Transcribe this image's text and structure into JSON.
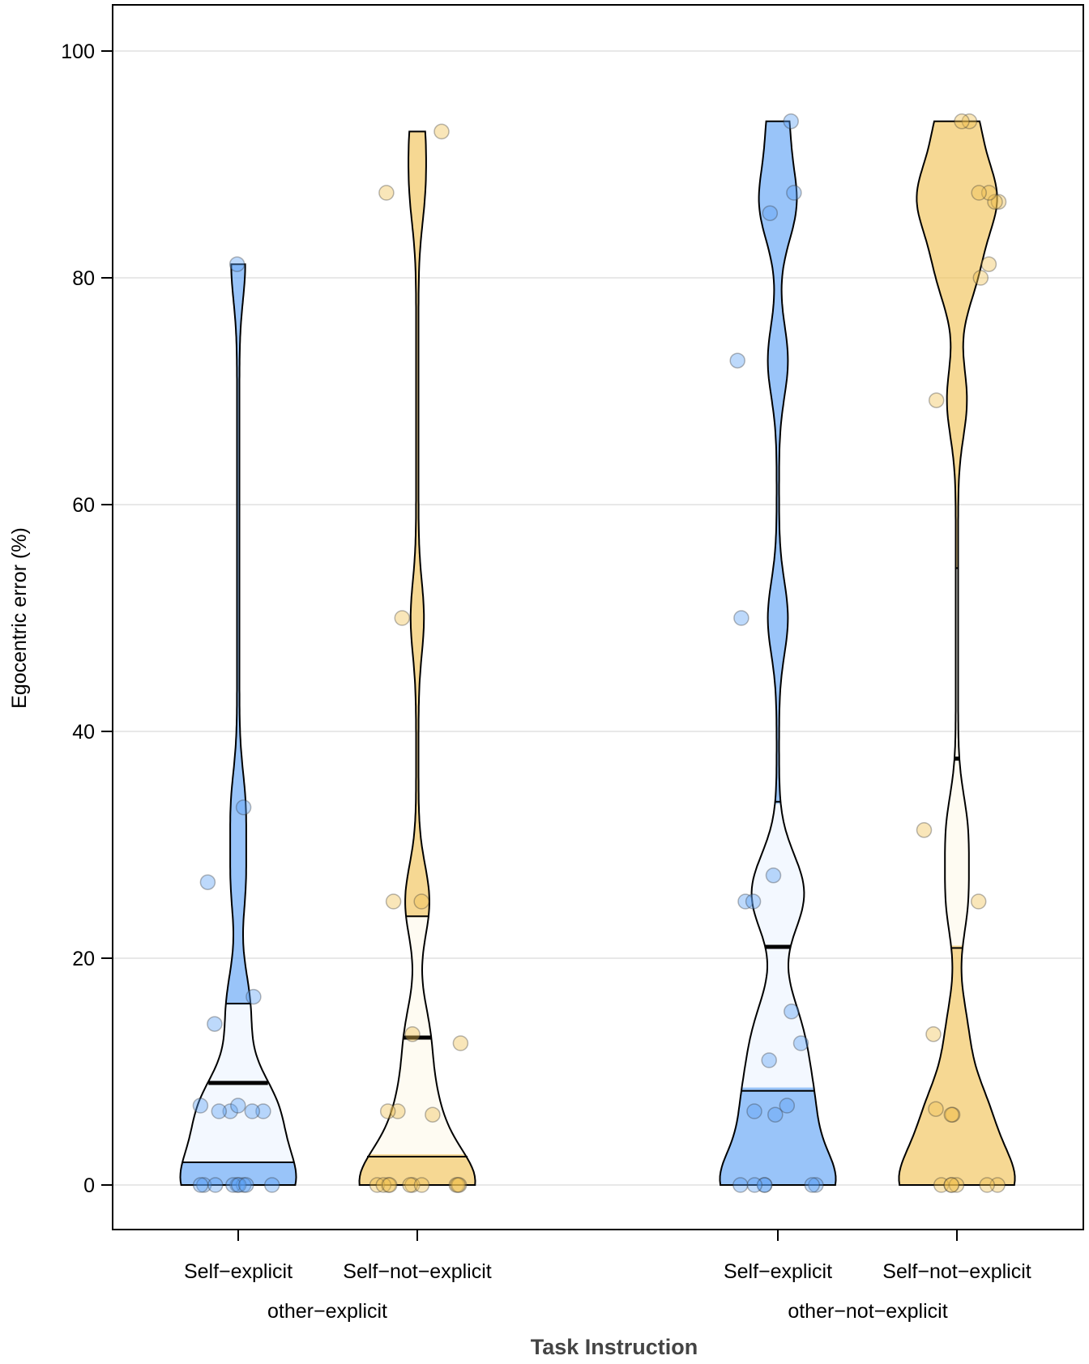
{
  "chart_data": {
    "type": "violin",
    "title": "",
    "xlabel": "Task Instruction",
    "ylabel": "Egocentric error (%)",
    "ylim": [
      -4,
      104
    ],
    "yticks": [
      0,
      20,
      40,
      60,
      80,
      100
    ],
    "grid": true,
    "groups": [
      {
        "label": "other−explicit",
        "conditions": [
          {
            "label": "Self−explicit",
            "color": "#5aa0f5",
            "mean": 9.0,
            "ci_low": 2.0,
            "ci_high": 16.0,
            "points": [
              0,
              0,
              0,
              0,
              0,
              0,
              0,
              0,
              0,
              6.5,
              6.5,
              6.5,
              6.5,
              7.0,
              7.0,
              14.2,
              16.6,
              26.7,
              33.3,
              81.2
            ]
          },
          {
            "label": "Self−not−explicit",
            "color": "#f0c050",
            "mean": 13.0,
            "ci_low": 2.5,
            "ci_high": 23.7,
            "points": [
              0,
              0,
              0,
              0,
              0,
              0,
              0,
              0,
              0,
              0,
              6.2,
              6.5,
              6.5,
              12.5,
              13.3,
              25.0,
              25.0,
              50.0,
              87.5,
              92.9
            ]
          }
        ]
      },
      {
        "label": "other−not−explicit",
        "conditions": [
          {
            "label": "Self−explicit",
            "color": "#5aa0f5",
            "mean": 21.0,
            "ci_low": 8.3,
            "ci_high": 33.8,
            "points": [
              0,
              0,
              0,
              0,
              0,
              0,
              6.2,
              6.5,
              7.0,
              11.0,
              12.5,
              15.3,
              25.0,
              25.0,
              27.3,
              50.0,
              72.7,
              85.7,
              87.5,
              93.8
            ]
          },
          {
            "label": "Self−not−explicit",
            "color": "#f0c050",
            "mean": 37.6,
            "ci_low": 20.9,
            "ci_high": 54.4,
            "points": [
              0,
              0,
              0,
              0,
              0,
              0,
              6.2,
              6.2,
              6.7,
              13.3,
              25.0,
              31.3,
              69.2,
              80.0,
              81.2,
              86.7,
              86.7,
              87.5,
              87.5,
              93.8,
              93.8
            ]
          }
        ]
      }
    ]
  }
}
